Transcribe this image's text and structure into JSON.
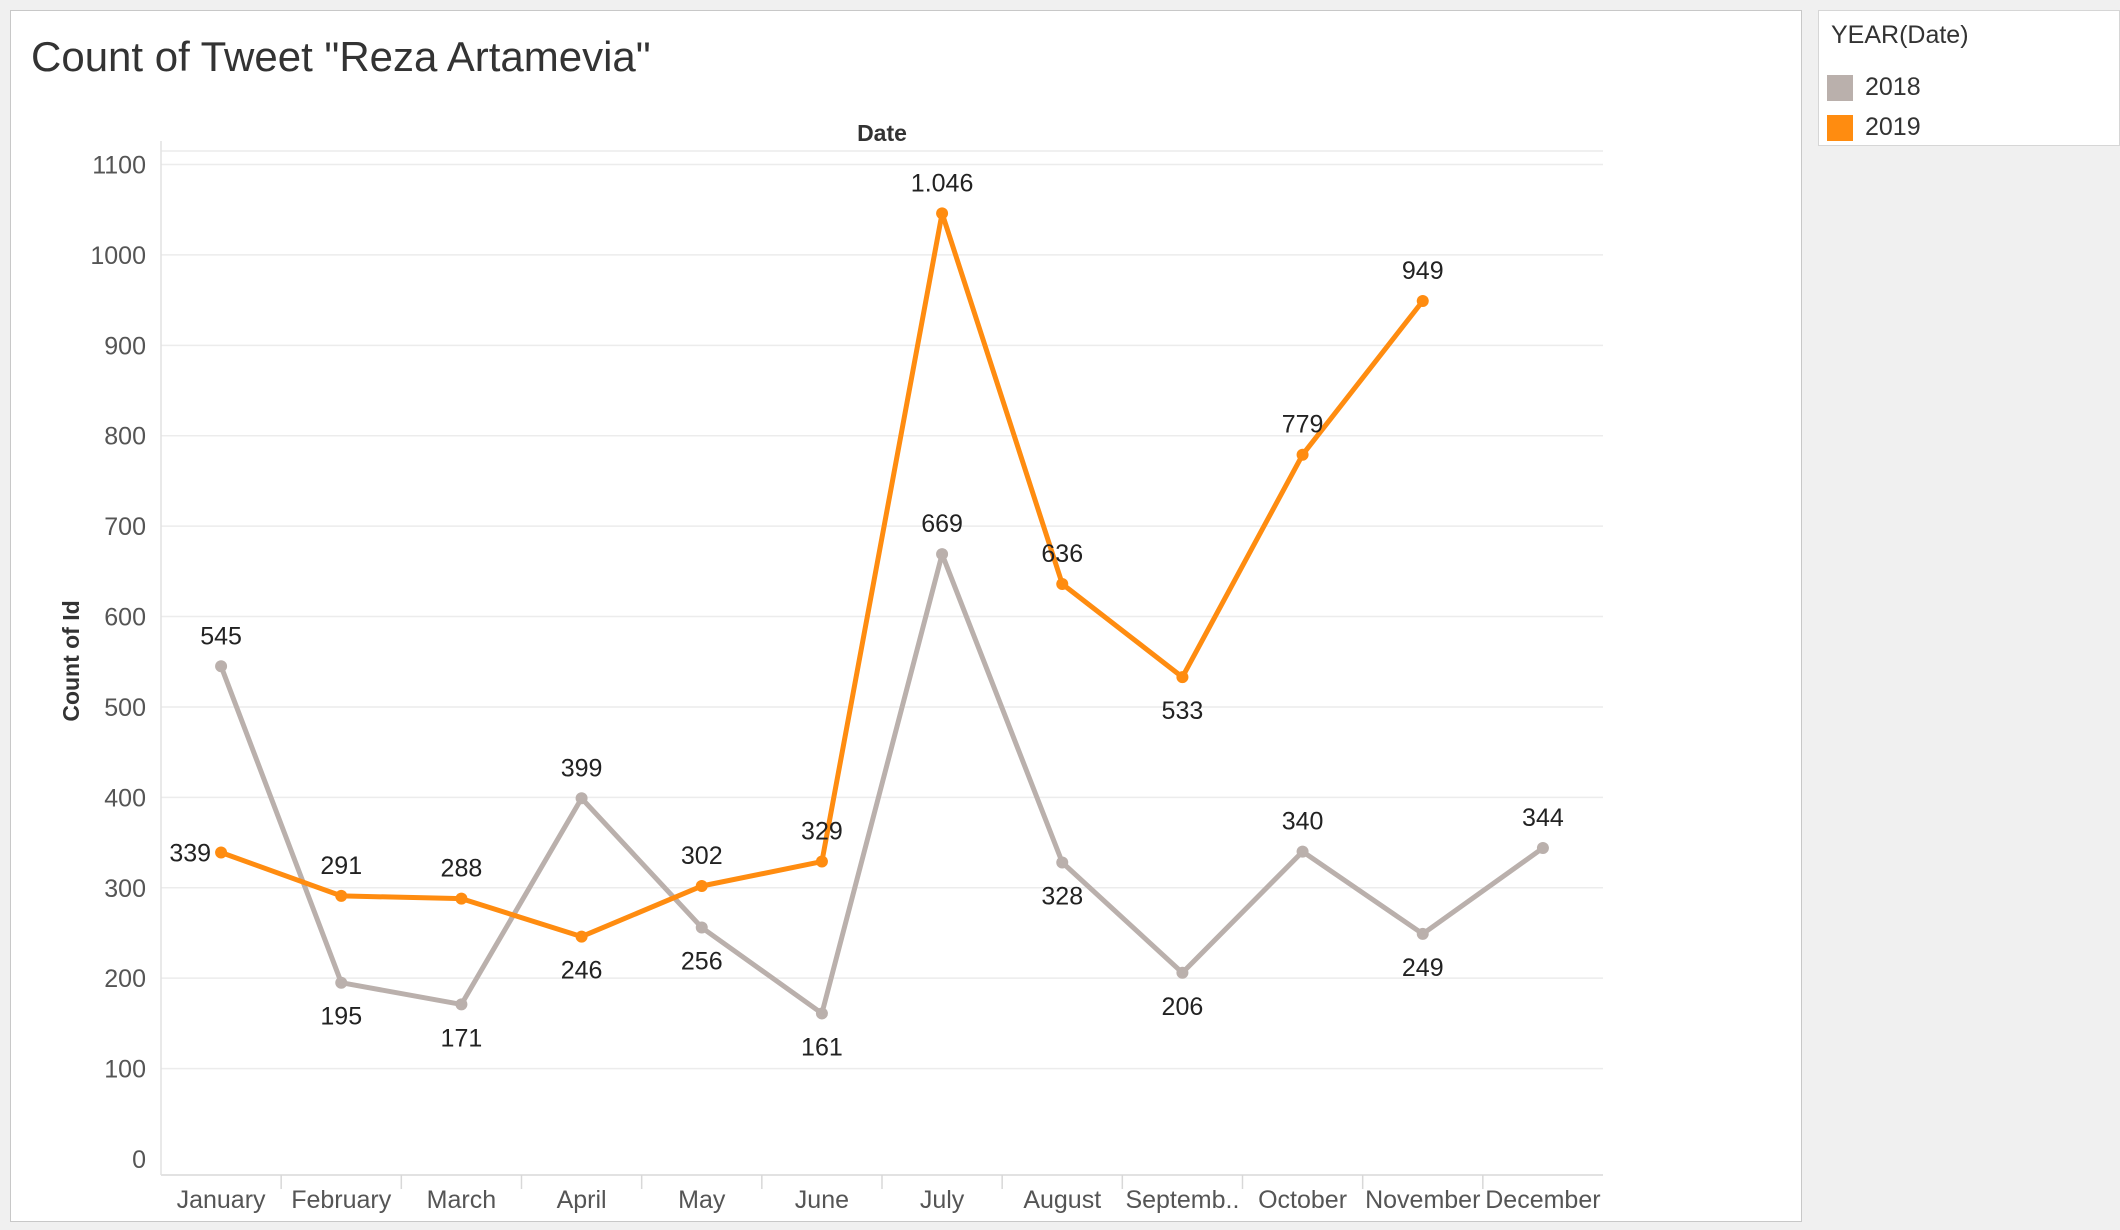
{
  "title": "Count of Tweet \"Reza Artamevia\"",
  "legend": {
    "title": "YEAR(Date)",
    "items": [
      {
        "label": "2018",
        "color": "#bab0ac"
      },
      {
        "label": "2019",
        "color": "#ff8c10"
      }
    ]
  },
  "chart_data": {
    "type": "line",
    "title": "Count of Tweet \"Reza Artamevia\"",
    "xlabel": "Date",
    "ylabel": "Count of Id",
    "categories": [
      "January",
      "February",
      "March",
      "April",
      "May",
      "June",
      "July",
      "August",
      "Septemb..",
      "October",
      "November",
      "December"
    ],
    "yticks": [
      "0",
      "100",
      "200",
      "300",
      "400",
      "500",
      "600",
      "700",
      "800",
      "900",
      "1000",
      "1100"
    ],
    "ylim": [
      0,
      1100
    ],
    "grid": true,
    "legend_position": "right",
    "series": [
      {
        "name": "2018",
        "color": "#bab0ac",
        "values": [
          545,
          195,
          171,
          399,
          256,
          161,
          669,
          328,
          206,
          340,
          249,
          344
        ],
        "labels": [
          "545",
          "195",
          "171",
          "399",
          "256",
          "161",
          "669",
          "328",
          "206",
          "340",
          "249",
          "344"
        ]
      },
      {
        "name": "2019",
        "color": "#ff8c10",
        "values": [
          339,
          291,
          288,
          246,
          302,
          329,
          1046,
          636,
          533,
          779,
          949,
          null
        ],
        "labels": [
          "339",
          "291",
          "288",
          "246",
          "302",
          "329",
          "1.046",
          "636",
          "533",
          "779",
          "949",
          null
        ]
      }
    ]
  }
}
